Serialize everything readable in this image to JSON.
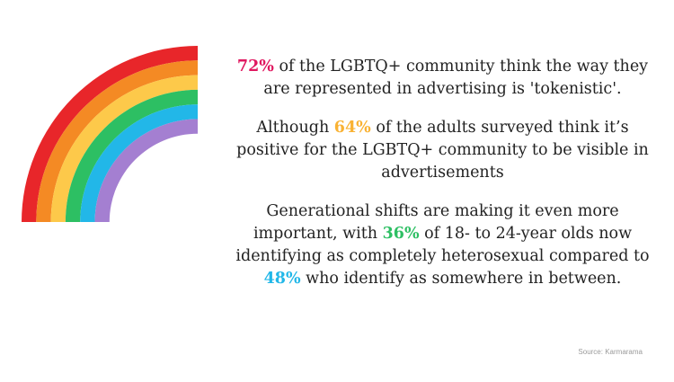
{
  "rainbow": {
    "colors": [
      "#e8262a",
      "#f48a24",
      "#fdc94a",
      "#2dbf63",
      "#22b7e8",
      "#a47fd1"
    ]
  },
  "facts": [
    {
      "highlight": "72%",
      "highlight_color": "#e0175f",
      "before": "",
      "after": " of the LGBTQ+ community think the way they are represented in advertising is 'tokenistic'."
    },
    {
      "highlight": "64%",
      "highlight_color": "#f9b233",
      "before": "Although ",
      "after": " of the adults surveyed think it’s positive for the LGBTQ+ community to be visible in advertisements"
    },
    {
      "before": "Generational shifts are making it even more important, with ",
      "highlight": "36%",
      "highlight_color": "#2dbf63",
      "middle": " of 18- to 24-year olds now identifying as completely heterosexual compared to ",
      "highlight2": "48%",
      "highlight2_color": "#22b7e8",
      "after": " who identify as somewhere in between."
    }
  ],
  "source": "Source: Karmarama"
}
